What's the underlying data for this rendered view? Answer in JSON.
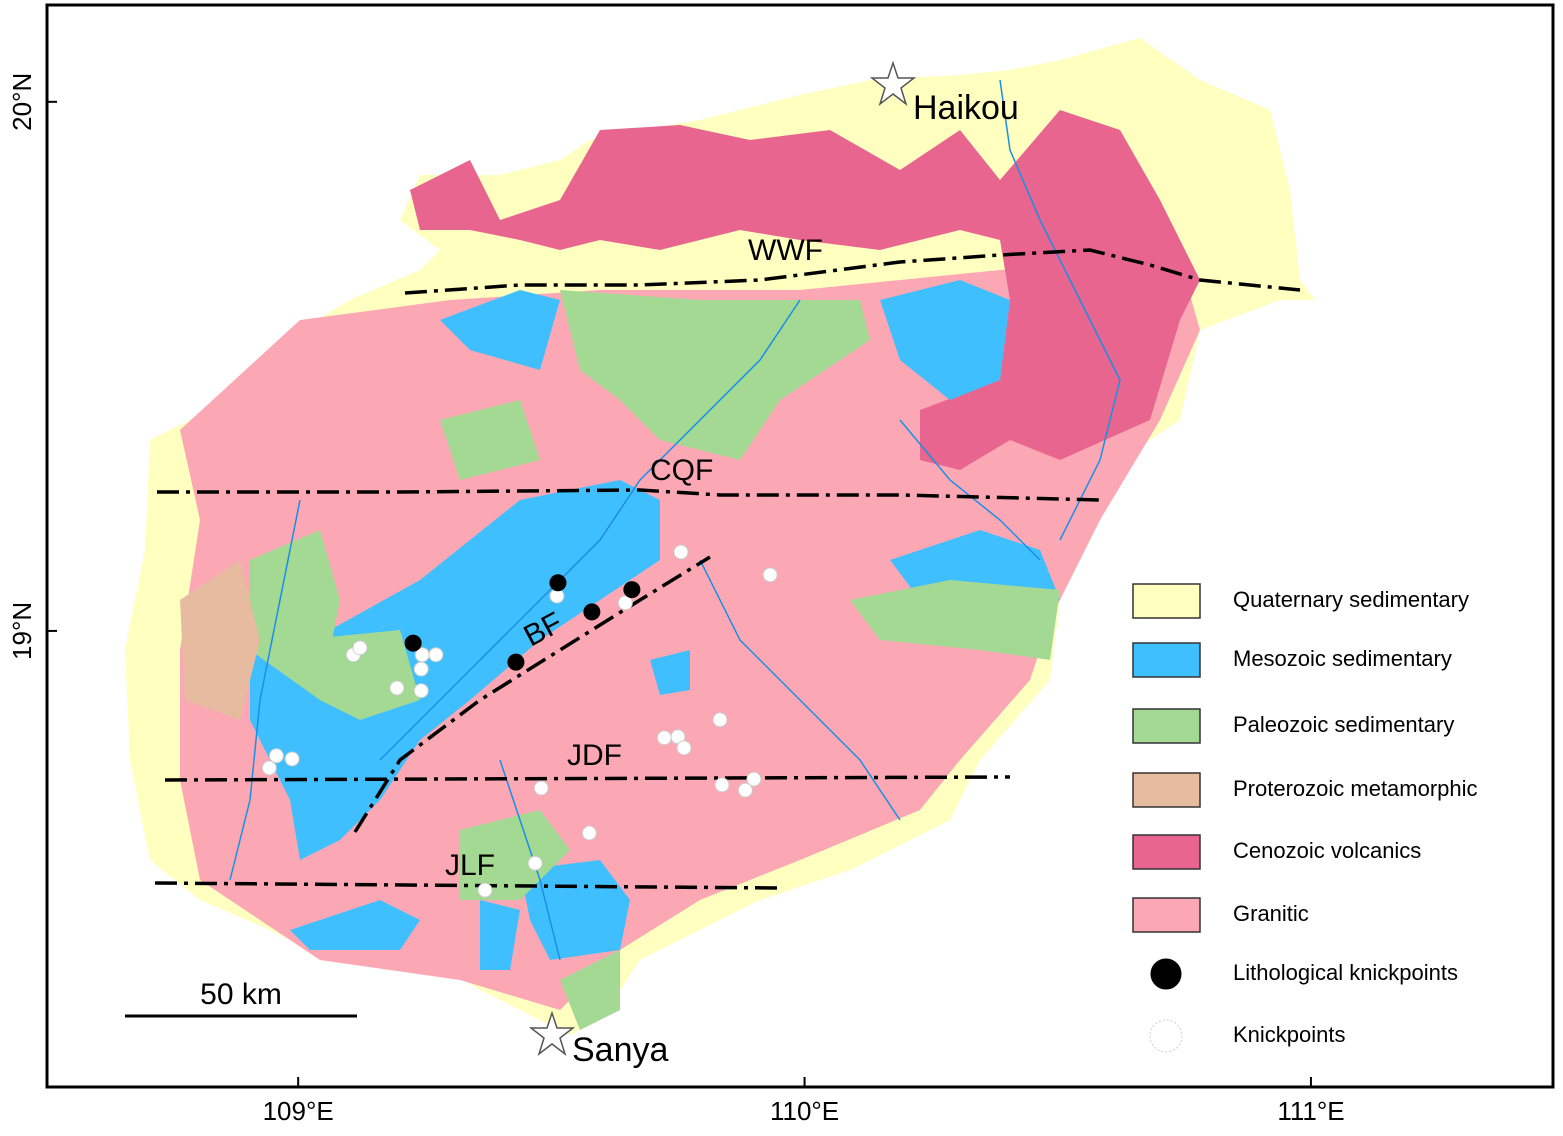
{
  "map": {
    "xlim": [
      108.504,
      111.478
    ],
    "ylim": [
      18.138,
      20.183
    ],
    "xticks": [
      {
        "value": 109,
        "label": "109°E"
      },
      {
        "value": 110,
        "label": "110°E"
      },
      {
        "value": 111,
        "label": "111°E"
      }
    ],
    "yticks": [
      {
        "value": 19,
        "label": "19°N"
      },
      {
        "value": 20,
        "label": "20°N"
      }
    ],
    "cities": [
      "Haikou",
      "Sanya"
    ],
    "faults": [
      "WWF",
      "CQF",
      "BF",
      "JDF",
      "JLF"
    ],
    "scale_bar": "50 km",
    "legend": [
      {
        "label": "Quaternary sedimentary",
        "color": "#ffffc0"
      },
      {
        "label": "Mesozoic sedimentary",
        "color": "#40bfff"
      },
      {
        "label": "Paleozoic sedimentary",
        "color": "#a3d993"
      },
      {
        "label": "Proterozoic metamorphic",
        "color": "#e6bba0"
      },
      {
        "label": "Cenozoic volcanics",
        "color": "#e8658f"
      },
      {
        "label": "Granitic",
        "color": "#fba8b4"
      },
      {
        "label": "Lithological knickpoints",
        "color": "#000000"
      },
      {
        "label": "Knickpoints",
        "color": "#ffffff"
      }
    ],
    "lithological_knickpoints": {
      "lon": [
        109.227,
        109.43,
        109.513,
        109.58,
        109.659
      ],
      "lat": [
        18.977,
        18.941,
        19.091,
        19.036,
        19.078
      ]
    },
    "knickpoints": {
      "lon": [
        109.109,
        109.122,
        109.245,
        109.272,
        109.243,
        109.195,
        109.243,
        109.511,
        109.646,
        109.756,
        109.932,
        109.833,
        109.723,
        109.75,
        109.762,
        108.943,
        108.957,
        108.988,
        109.48,
        109.837,
        109.883,
        109.9,
        109.575,
        109.468,
        109.369
      ],
      "lat": [
        18.955,
        18.968,
        18.955,
        18.955,
        18.928,
        18.892,
        18.887,
        19.066,
        19.053,
        19.149,
        19.106,
        18.832,
        18.798,
        18.8,
        18.779,
        18.741,
        18.764,
        18.758,
        18.703,
        18.709,
        18.699,
        18.72,
        18.618,
        18.561,
        18.51
      ]
    }
  }
}
